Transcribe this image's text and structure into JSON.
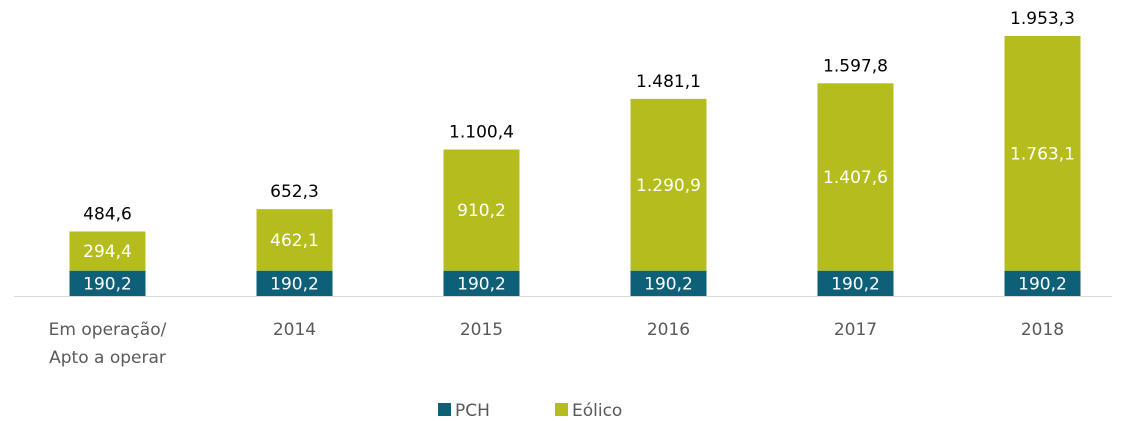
{
  "chart_data": {
    "type": "stacked_bar",
    "categories": [
      "Em operação/\nApto a operar",
      "2014",
      "2015",
      "2016",
      "2017",
      "2018"
    ],
    "series": [
      {
        "name": "PCH",
        "color": "#0e5f78",
        "values": [
          190.2,
          190.2,
          190.2,
          190.2,
          190.2,
          190.2
        ],
        "value_labels": [
          "190,2",
          "190,2",
          "190,2",
          "190,2",
          "190,2",
          "190,2"
        ]
      },
      {
        "name": "Eólico",
        "color": "#b5bd1e",
        "values": [
          294.4,
          462.1,
          910.2,
          1290.9,
          1407.6,
          1763.1
        ],
        "value_labels": [
          "294,4",
          "462,1",
          "910,2",
          "1.290,9",
          "1.407,6",
          "1.763,1"
        ]
      }
    ],
    "totals": [
      484.6,
      652.3,
      1100.4,
      1481.1,
      1597.8,
      1953.3
    ],
    "total_labels": [
      "484,6",
      "652,3",
      "1.100,4",
      "1.481,1",
      "1.597,8",
      "1.953,3"
    ],
    "legend": "bottom"
  }
}
